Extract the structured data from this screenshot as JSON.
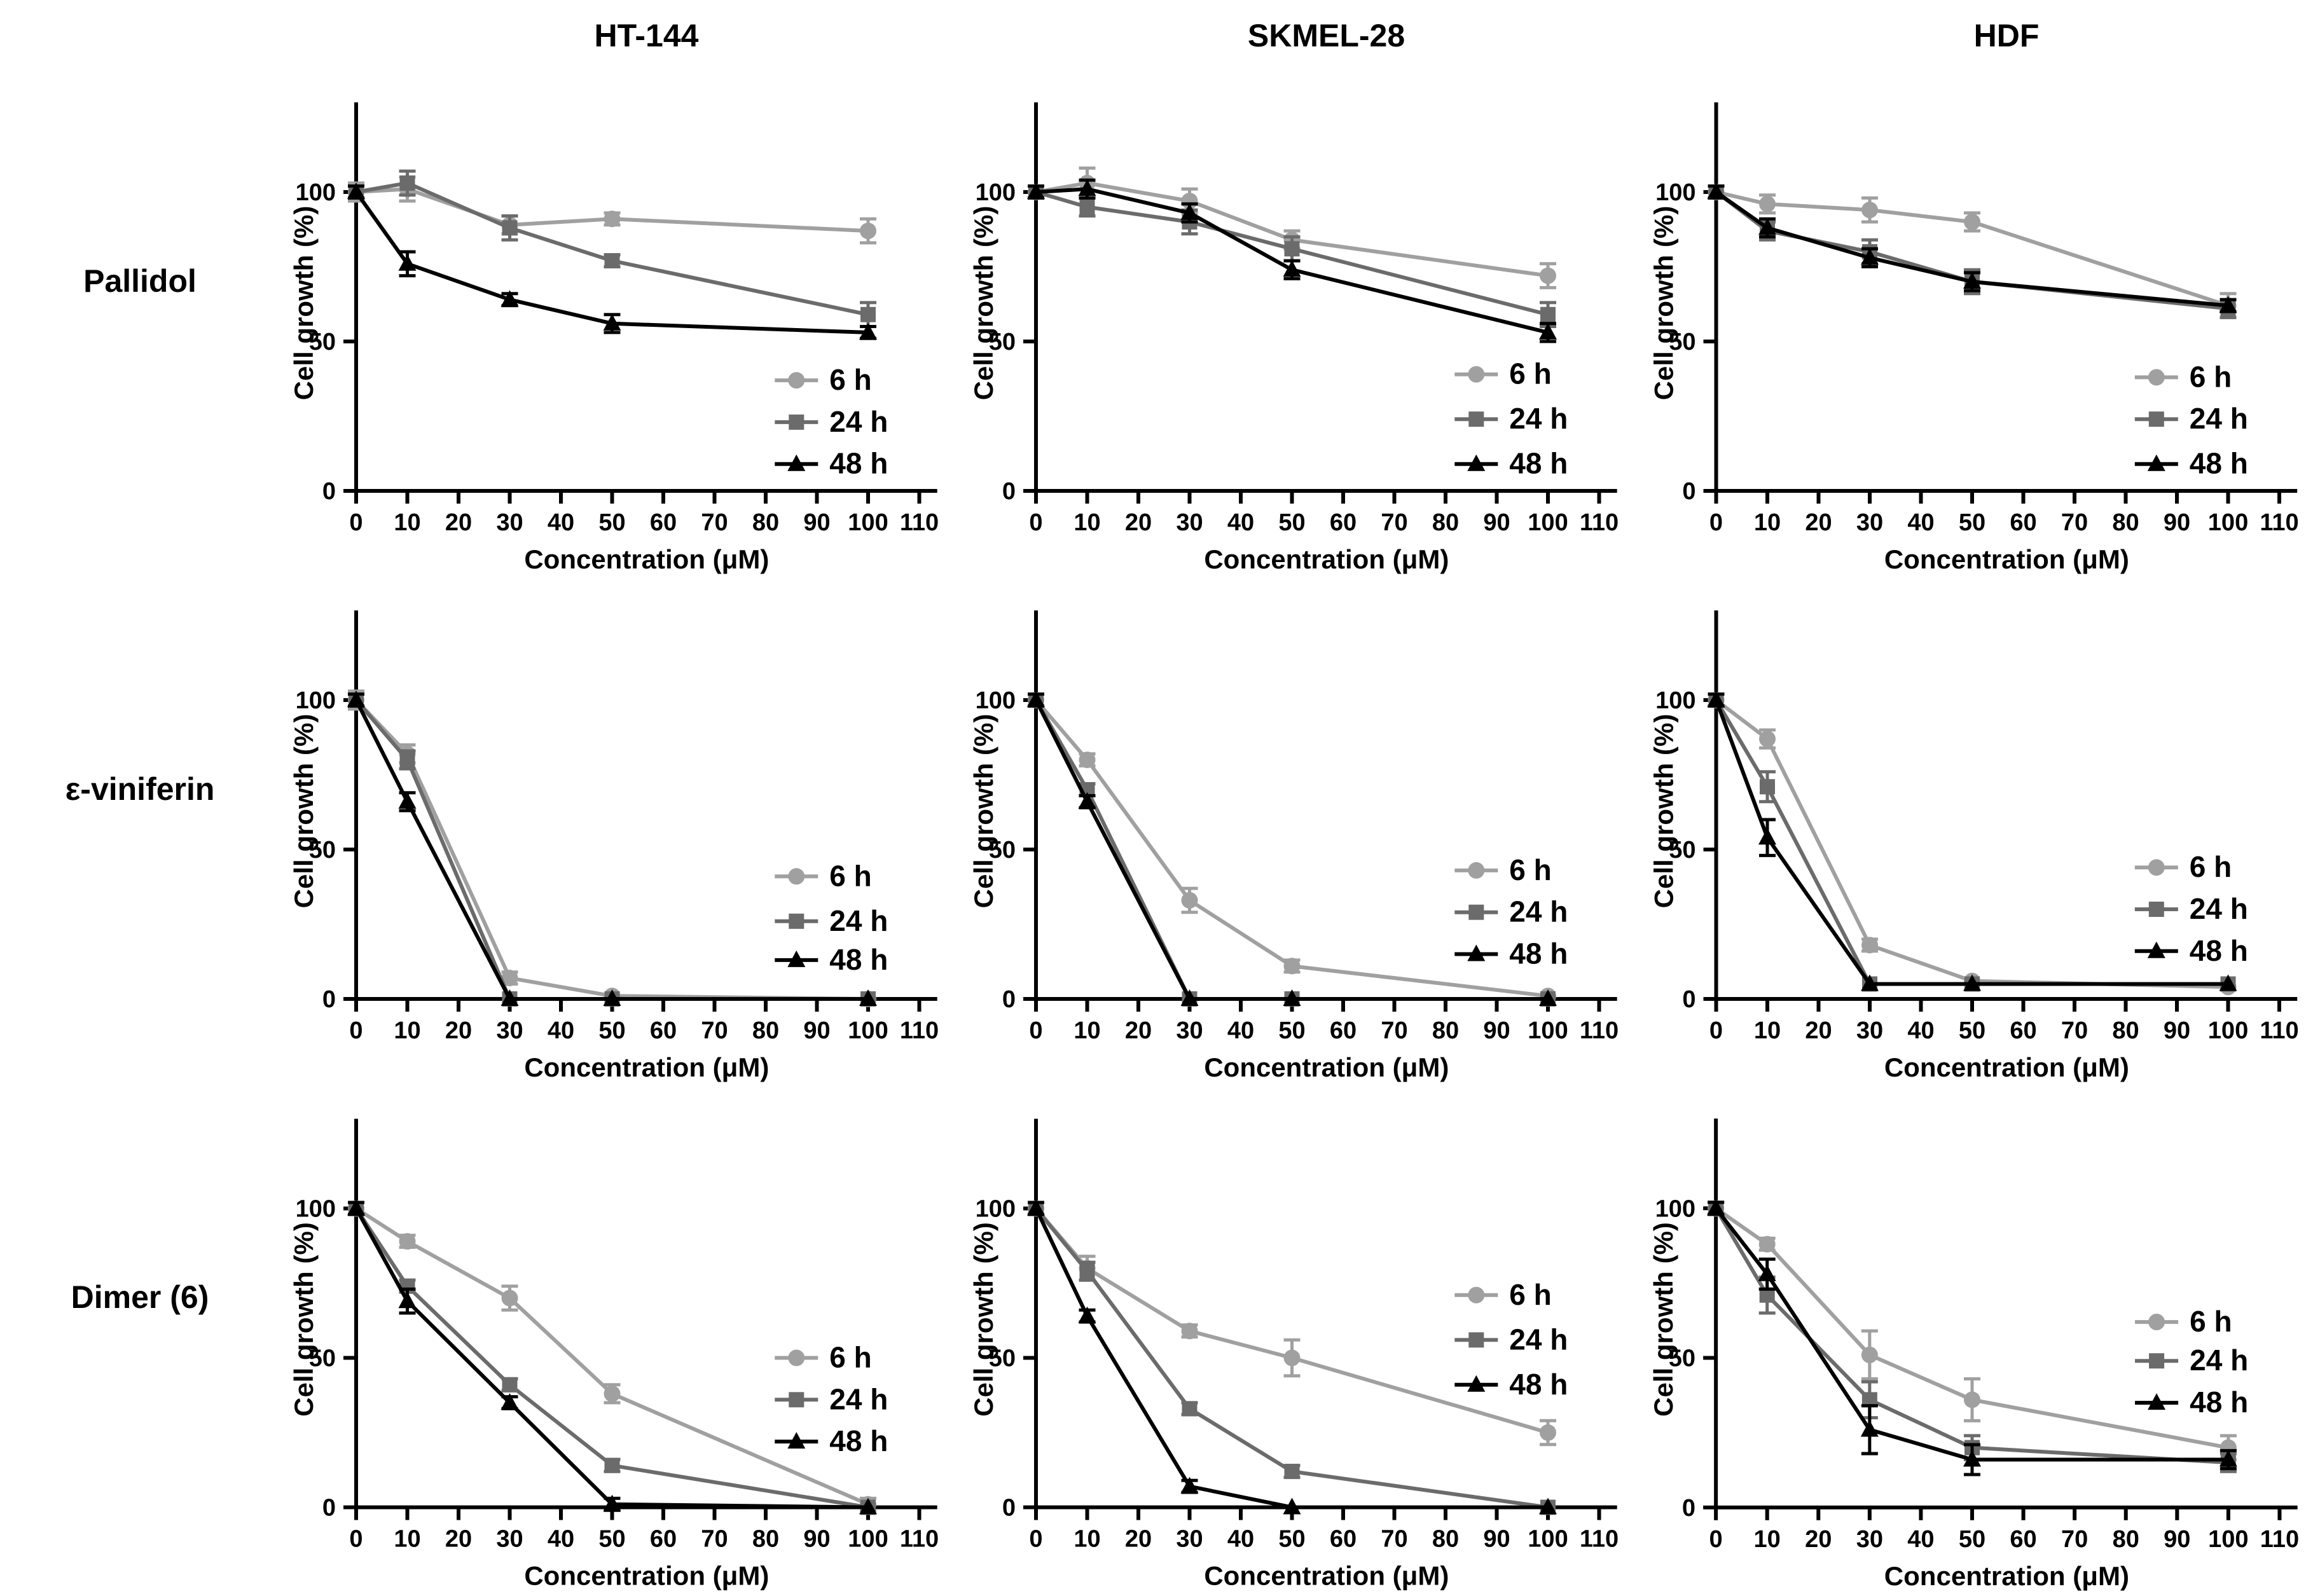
{
  "figure": {
    "columns": [
      "HT-144",
      "SKMEL-28",
      "HDF"
    ],
    "rows": [
      "Pallidol",
      "ε-viniferin",
      "Dimer (6)"
    ]
  },
  "axes": {
    "xlabel": "Concentration (μM)",
    "ylabel": "Cell growth (%)",
    "x_ticks": [
      0,
      10,
      20,
      30,
      40,
      50,
      60,
      70,
      80,
      90,
      100,
      110
    ],
    "y_ticks": [
      0,
      50,
      100
    ],
    "xlim": [
      0,
      113.5
    ],
    "ylim": [
      0,
      130
    ],
    "grid": false,
    "legend_position": "inside-right"
  },
  "series_styles": [
    {
      "name": "6 h",
      "color": "#a0a0a0",
      "marker": "circle"
    },
    {
      "name": "24 h",
      "color": "#6b6b6b",
      "marker": "square"
    },
    {
      "name": "48 h",
      "color": "#000000",
      "marker": "triangle"
    }
  ],
  "chart_data": [
    {
      "type": "line",
      "compound": "Pallidol",
      "cell_line": "HT-144",
      "x": [
        0,
        10,
        30,
        50,
        100
      ],
      "series": [
        {
          "name": "6 h",
          "values": [
            100,
            101,
            89,
            91,
            87
          ],
          "errors": [
            3,
            4,
            3,
            2,
            4
          ]
        },
        {
          "name": "24 h",
          "values": [
            100,
            103,
            88,
            77,
            59
          ],
          "errors": [
            2,
            4,
            4,
            2,
            4
          ]
        },
        {
          "name": "48 h",
          "values": [
            100,
            76,
            64,
            56,
            53
          ],
          "errors": [
            2,
            4,
            2,
            3,
            2
          ]
        }
      ],
      "legend_y": [
        37,
        23,
        9
      ]
    },
    {
      "type": "line",
      "compound": "Pallidol",
      "cell_line": "SKMEL-28",
      "x": [
        0,
        10,
        30,
        50,
        100
      ],
      "series": [
        {
          "name": "6 h",
          "values": [
            100,
            103,
            97,
            84,
            72
          ],
          "errors": [
            2,
            5,
            4,
            3,
            4
          ]
        },
        {
          "name": "24 h",
          "values": [
            100,
            95,
            90,
            81,
            59
          ],
          "errors": [
            2,
            3,
            4,
            4,
            4
          ]
        },
        {
          "name": "48 h",
          "values": [
            100,
            101,
            93,
            74,
            53
          ],
          "errors": [
            2,
            3,
            3,
            3,
            3
          ]
        }
      ],
      "legend_y": [
        39,
        24,
        9
      ]
    },
    {
      "type": "line",
      "compound": "Pallidol",
      "cell_line": "HDF",
      "x": [
        0,
        10,
        30,
        50,
        100
      ],
      "series": [
        {
          "name": "6 h",
          "values": [
            100,
            96,
            94,
            90,
            62
          ],
          "errors": [
            2,
            3,
            4,
            3,
            4
          ]
        },
        {
          "name": "24 h",
          "values": [
            100,
            87,
            80,
            70,
            61
          ],
          "errors": [
            2,
            3,
            4,
            4,
            3
          ]
        },
        {
          "name": "48 h",
          "values": [
            100,
            88,
            78,
            70,
            62
          ],
          "errors": [
            2,
            3,
            3,
            3,
            2
          ]
        }
      ],
      "legend_y": [
        38,
        24,
        9
      ]
    },
    {
      "type": "line",
      "compound": "ε-viniferin",
      "cell_line": "HT-144",
      "x": [
        0,
        10,
        30,
        50,
        100
      ],
      "series": [
        {
          "name": "6 h",
          "values": [
            100,
            82,
            7,
            1,
            0
          ],
          "errors": [
            3,
            3,
            2,
            1,
            1
          ]
        },
        {
          "name": "24 h",
          "values": [
            100,
            80,
            0,
            0,
            0
          ],
          "errors": [
            2,
            3,
            1,
            1,
            1
          ]
        },
        {
          "name": "48 h",
          "values": [
            100,
            66,
            0,
            0,
            0
          ],
          "errors": [
            2,
            3,
            1,
            1,
            1
          ]
        }
      ],
      "legend_y": [
        41,
        26,
        13
      ]
    },
    {
      "type": "line",
      "compound": "ε-viniferin",
      "cell_line": "SKMEL-28",
      "x": [
        0,
        10,
        30,
        50,
        100
      ],
      "series": [
        {
          "name": "6 h",
          "values": [
            100,
            80,
            33,
            11,
            1
          ],
          "errors": [
            2,
            2,
            4,
            2,
            1
          ]
        },
        {
          "name": "24 h",
          "values": [
            100,
            70,
            0,
            0,
            0
          ],
          "errors": [
            2,
            2,
            1,
            1,
            1
          ]
        },
        {
          "name": "48 h",
          "values": [
            100,
            66,
            0,
            0,
            0
          ],
          "errors": [
            2,
            2,
            1,
            1,
            1
          ]
        }
      ],
      "legend_y": [
        43,
        29,
        15
      ]
    },
    {
      "type": "line",
      "compound": "ε-viniferin",
      "cell_line": "HDF",
      "x": [
        0,
        10,
        30,
        50,
        100
      ],
      "series": [
        {
          "name": "6 h",
          "values": [
            100,
            87,
            18,
            6,
            4
          ],
          "errors": [
            2,
            3,
            2,
            1,
            1
          ]
        },
        {
          "name": "24 h",
          "values": [
            100,
            71,
            5,
            5,
            5
          ],
          "errors": [
            2,
            5,
            1,
            1,
            1
          ]
        },
        {
          "name": "48 h",
          "values": [
            100,
            54,
            5,
            5,
            5
          ],
          "errors": [
            2,
            6,
            1,
            1,
            1
          ]
        }
      ],
      "legend_y": [
        44,
        30,
        16
      ]
    },
    {
      "type": "line",
      "compound": "Dimer (6)",
      "cell_line": "HT-144",
      "x": [
        0,
        10,
        30,
        50,
        100
      ],
      "series": [
        {
          "name": "6 h",
          "values": [
            100,
            89,
            70,
            38,
            1
          ],
          "errors": [
            2,
            2,
            4,
            3,
            2
          ]
        },
        {
          "name": "24 h",
          "values": [
            100,
            74,
            41,
            14,
            0
          ],
          "errors": [
            2,
            2,
            2,
            2,
            1
          ]
        },
        {
          "name": "48 h",
          "values": [
            100,
            69,
            35,
            1,
            0
          ],
          "errors": [
            2,
            4,
            2,
            2,
            1
          ]
        }
      ],
      "legend_y": [
        50,
        36,
        22
      ]
    },
    {
      "type": "line",
      "compound": "Dimer (6)",
      "cell_line": "SKMEL-28",
      "x": [
        0,
        10,
        30,
        50,
        100
      ],
      "series": [
        {
          "name": "6 h",
          "values": [
            100,
            80,
            59,
            50,
            25
          ],
          "errors": [
            2,
            4,
            2,
            6,
            4
          ]
        },
        {
          "name": "24 h",
          "values": [
            100,
            79,
            33,
            12,
            0
          ],
          "errors": [
            2,
            3,
            2,
            2,
            1
          ]
        },
        {
          "name": "48 h",
          "values": [
            100,
            64,
            7,
            0,
            0
          ],
          "errors": [
            2,
            2,
            2,
            1,
            1
          ]
        }
      ],
      "legend_y": [
        71,
        56,
        41
      ]
    },
    {
      "type": "line",
      "compound": "Dimer (6)",
      "cell_line": "HDF",
      "x": [
        0,
        10,
        30,
        50,
        100
      ],
      "series": [
        {
          "name": "6 h",
          "values": [
            100,
            88,
            51,
            36,
            20
          ],
          "errors": [
            2,
            2,
            8,
            7,
            4
          ]
        },
        {
          "name": "24 h",
          "values": [
            100,
            71,
            36,
            20,
            15
          ],
          "errors": [
            2,
            6,
            6,
            4,
            3
          ]
        },
        {
          "name": "48 h",
          "values": [
            100,
            78,
            26,
            16,
            16
          ],
          "errors": [
            2,
            5,
            8,
            5,
            3
          ]
        }
      ],
      "legend_y": [
        62,
        49,
        35
      ]
    }
  ]
}
